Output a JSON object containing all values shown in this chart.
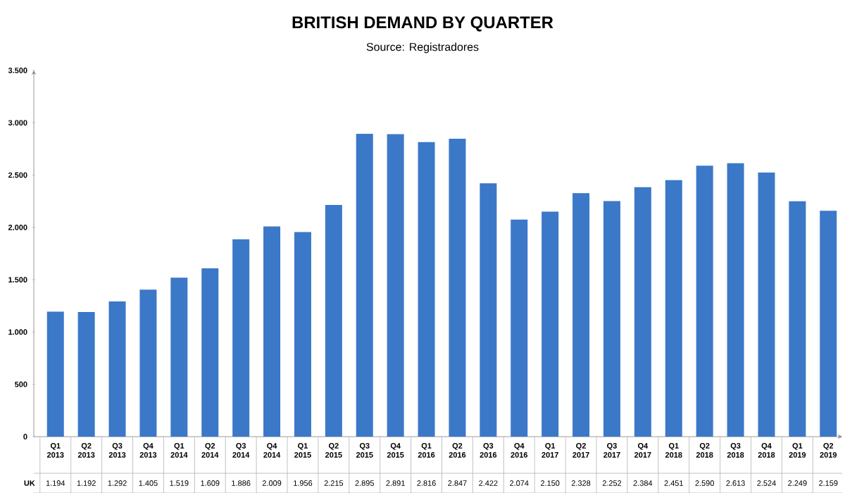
{
  "chart_data": {
    "type": "bar",
    "title": "BRITISH DEMAND BY QUARTER",
    "subtitle": "Source: Registradores",
    "categories": [
      "Q1 2013",
      "Q2 2013",
      "Q3 2013",
      "Q4 2013",
      "Q1 2014",
      "Q2 2014",
      "Q3 2014",
      "Q4 2014",
      "Q1 2015",
      "Q2 2015",
      "Q3 2015",
      "Q4 2015",
      "Q1 2016",
      "Q2 2016",
      "Q3 2016",
      "Q4 2016",
      "Q1 2017",
      "Q2 2017",
      "Q3 2017",
      "Q4 2017",
      "Q1 2018",
      "Q2 2018",
      "Q3 2018",
      "Q4 2018",
      "Q1 2019",
      "Q2 2019"
    ],
    "series": [
      {
        "name": "UK",
        "color": "#3b78c8",
        "values": [
          1194,
          1192,
          1292,
          1405,
          1519,
          1609,
          1886,
          2009,
          1956,
          2215,
          2895,
          2891,
          2816,
          2847,
          2422,
          2074,
          2150,
          2328,
          2252,
          2384,
          2451,
          2590,
          2613,
          2524,
          2249,
          2159
        ],
        "value_labels": [
          "1.194",
          "1.192",
          "1.292",
          "1.405",
          "1.519",
          "1.609",
          "1.886",
          "2.009",
          "1.956",
          "2.215",
          "2.895",
          "2.891",
          "2.816",
          "2.847",
          "2.422",
          "2.074",
          "2.150",
          "2.328",
          "2.252",
          "2.384",
          "2.451",
          "2.590",
          "2.613",
          "2.524",
          "2.249",
          "2.159"
        ]
      }
    ],
    "ylim": [
      0,
      3500
    ],
    "yticks": [
      0,
      {
        "value": 500,
        "label": "500"
      },
      {
        "value": 1000,
        "label": "1.000"
      },
      {
        "value": 1500,
        "label": "1.500"
      },
      {
        "value": 2000,
        "label": "2.000"
      },
      {
        "value": 2500,
        "label": "2.500"
      },
      {
        "value": 3000,
        "label": "3.000"
      },
      {
        "value": 3500,
        "label": "3.500"
      }
    ]
  }
}
